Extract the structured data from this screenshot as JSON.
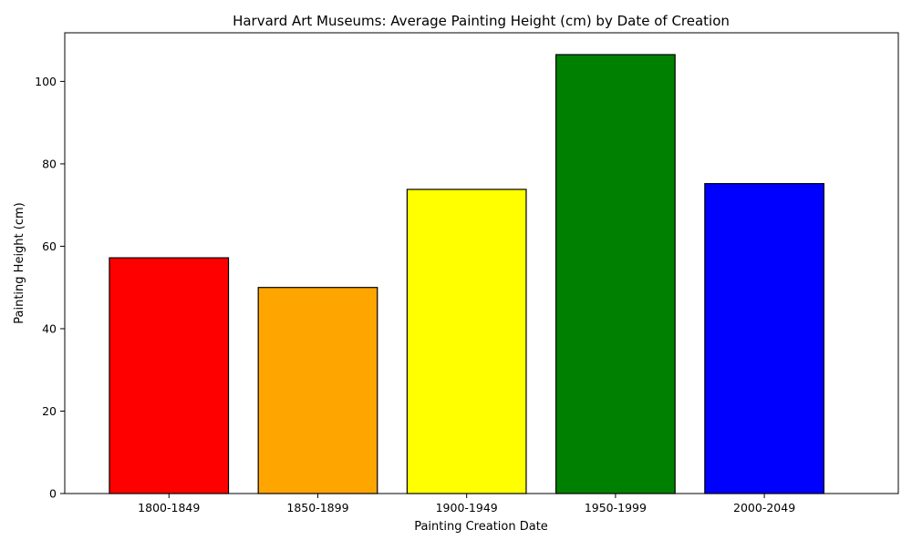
{
  "chart_data": {
    "type": "bar",
    "title": "Harvard Art Museums: Average Painting Height (cm) by Date of Creation",
    "xlabel": "Painting Creation Date",
    "ylabel": "Painting Height (cm)",
    "categories": [
      "1800-1849",
      "1850-1899",
      "1900-1949",
      "1950-1999",
      "2000-2049"
    ],
    "values": [
      57.2,
      50.0,
      73.8,
      106.5,
      75.2
    ],
    "colors": [
      "#ff0000",
      "#ffa500",
      "#ffff00",
      "#008000",
      "#0000ff"
    ],
    "edge_color": "#000000",
    "ylim": [
      0,
      111.8
    ],
    "yticks": [
      0,
      20,
      40,
      60,
      80,
      100
    ],
    "grid": false,
    "legend": false
  }
}
